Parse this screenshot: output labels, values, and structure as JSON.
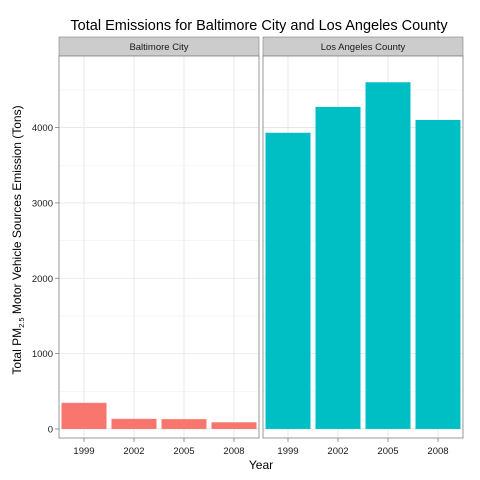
{
  "chart_data": {
    "type": "bar",
    "title": "Total Emissions for Baltimore City and Los Angeles County",
    "xlabel": "Year",
    "ylabel_parts": {
      "prefix": "Total PM",
      "subscript": "2.5",
      "suffix": " Motor Vehicle Sources Emission (Tons)"
    },
    "ylim": [
      -120,
      4950
    ],
    "yticks": [
      0,
      1000,
      2000,
      3000,
      4000
    ],
    "categories": [
      "1999",
      "2002",
      "2005",
      "2008"
    ],
    "grid": true,
    "panels": [
      {
        "name": "Baltimore City",
        "color": "#F8766D",
        "values": [
          346.8,
          134.3,
          130.4,
          88.3
        ]
      },
      {
        "name": "Los Angeles County",
        "color": "#00BFC4",
        "values": [
          3931.1,
          4274.0,
          4601.4,
          4101.3
        ]
      }
    ]
  }
}
